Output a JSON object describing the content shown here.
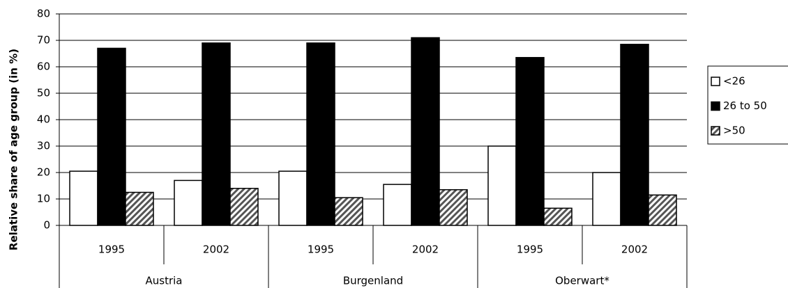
{
  "chart_data": {
    "type": "bar",
    "y_label": "Relative share of age group (in %)",
    "categories": [
      "1995",
      "2002",
      "1995",
      "2002",
      "1995",
      "2002"
    ],
    "groups": [
      "Austria",
      "Burgenland",
      "Oberwart*"
    ],
    "series": [
      {
        "name": "<26",
        "color": "#ffffff",
        "values": [
          20.5,
          17,
          20.5,
          15.5,
          30,
          20
        ]
      },
      {
        "name": "26 to 50",
        "color": "#000000",
        "values": [
          67,
          69,
          69,
          71,
          63.5,
          68.5
        ]
      },
      {
        "name": ">50",
        "color": "#ffffff",
        "pattern": "hatch",
        "values": [
          12.5,
          14,
          10.5,
          13.5,
          6.5,
          11.5
        ]
      }
    ],
    "ylim": [
      0,
      80
    ],
    "yticks": [
      0,
      10,
      20,
      30,
      40,
      50,
      60,
      70,
      80
    ],
    "grid": true,
    "legend": "right"
  }
}
